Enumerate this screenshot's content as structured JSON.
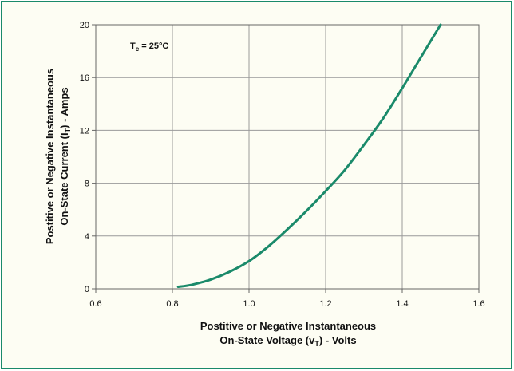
{
  "chart_data": {
    "type": "line",
    "annotation": {
      "main": "T",
      "sub": "c",
      "rest": " = 25°C"
    },
    "xlabel": {
      "line1": "Postitive or Negative Instantaneous",
      "line2_main": "On-State Voltage (v",
      "line2_sub": "T",
      "line2_rest": ") - Volts"
    },
    "ylabel": {
      "line1": "Postitive or Negative Instantaneous",
      "line2_main": "On-State Current (I",
      "line2_sub": "T",
      "line2_rest": ") - Amps"
    },
    "xlim": [
      0.6,
      1.6
    ],
    "ylim": [
      0,
      20
    ],
    "x_ticks": [
      0.6,
      0.8,
      1.0,
      1.2,
      1.4,
      1.6
    ],
    "x_tick_labels": [
      "0.6",
      "0.8",
      "1.0",
      "1.2",
      "1.4",
      "1.6"
    ],
    "y_ticks": [
      0,
      4,
      8,
      12,
      16,
      20
    ],
    "y_tick_labels": [
      "0",
      "4",
      "8",
      "12",
      "16",
      "20"
    ],
    "grid": true,
    "line_color": "#1a8a6a",
    "series": [
      {
        "x": [
          0.815,
          0.85,
          0.9,
          0.95,
          1.0,
          1.05,
          1.1,
          1.15,
          1.2,
          1.25,
          1.3,
          1.35,
          1.4,
          1.45,
          1.5
        ],
        "y": [
          0.15,
          0.3,
          0.7,
          1.3,
          2.1,
          3.2,
          4.5,
          5.9,
          7.4,
          9.0,
          10.9,
          12.9,
          15.2,
          17.6,
          20.0
        ]
      }
    ]
  }
}
